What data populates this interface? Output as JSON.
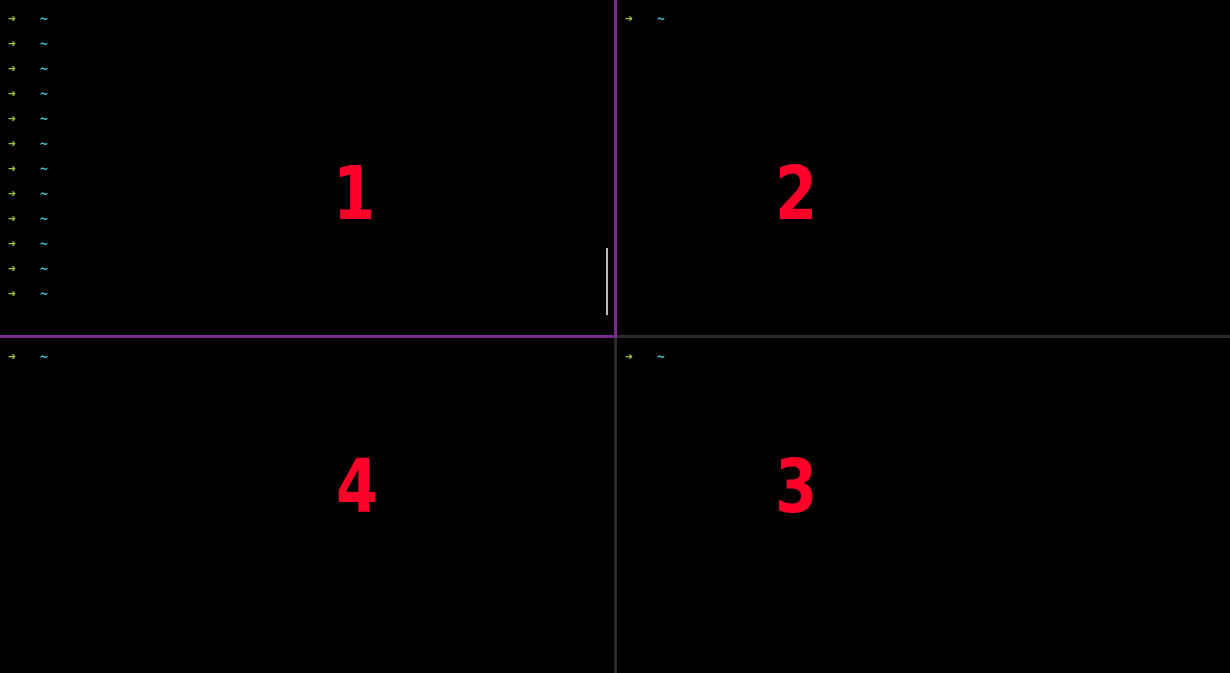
{
  "colors": {
    "background": "#000000",
    "arrow": "#9ac93a",
    "tilde": "#41c7d6",
    "label": "#ff0028",
    "active_border": "#7a2a8a",
    "inactive_border": "#2a2a2a"
  },
  "icons": {
    "prompt_arrow": "arrow-right-icon"
  },
  "panes": {
    "p1": {
      "number": "1",
      "lines": [
        {
          "arrow": "➜",
          "dir": "~"
        },
        {
          "arrow": "➜",
          "dir": "~"
        },
        {
          "arrow": "➜",
          "dir": "~"
        },
        {
          "arrow": "➜",
          "dir": "~"
        },
        {
          "arrow": "➜",
          "dir": "~"
        },
        {
          "arrow": "➜",
          "dir": "~"
        },
        {
          "arrow": "➜",
          "dir": "~"
        },
        {
          "arrow": "➜",
          "dir": "~"
        },
        {
          "arrow": "➜",
          "dir": "~"
        },
        {
          "arrow": "➜",
          "dir": "~"
        },
        {
          "arrow": "➜",
          "dir": "~"
        },
        {
          "arrow": "➜",
          "dir": "~"
        }
      ]
    },
    "p2": {
      "number": "2",
      "lines": [
        {
          "arrow": "➜",
          "dir": "~"
        }
      ]
    },
    "p3": {
      "number": "3",
      "lines": [
        {
          "arrow": "➜",
          "dir": "~"
        }
      ]
    },
    "p4": {
      "number": "4",
      "lines": [
        {
          "arrow": "➜",
          "dir": "~"
        }
      ]
    }
  }
}
